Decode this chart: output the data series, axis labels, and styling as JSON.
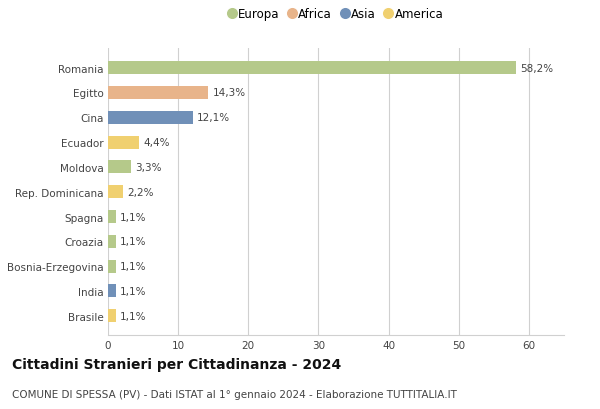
{
  "categories": [
    "Romania",
    "Egitto",
    "Cina",
    "Ecuador",
    "Moldova",
    "Rep. Dominicana",
    "Spagna",
    "Croazia",
    "Bosnia-Erzegovina",
    "India",
    "Brasile"
  ],
  "values": [
    58.2,
    14.3,
    12.1,
    4.4,
    3.3,
    2.2,
    1.1,
    1.1,
    1.1,
    1.1,
    1.1
  ],
  "labels": [
    "58,2%",
    "14,3%",
    "12,1%",
    "4,4%",
    "3,3%",
    "2,2%",
    "1,1%",
    "1,1%",
    "1,1%",
    "1,1%",
    "1,1%"
  ],
  "colors": [
    "#b5c98a",
    "#e8b48a",
    "#7090b8",
    "#f0d070",
    "#b5c98a",
    "#f0d070",
    "#b5c98a",
    "#b5c98a",
    "#b5c98a",
    "#7090b8",
    "#f0d070"
  ],
  "legend_labels": [
    "Europa",
    "Africa",
    "Asia",
    "America"
  ],
  "legend_colors": [
    "#b5c98a",
    "#e8b48a",
    "#7090b8",
    "#f0d070"
  ],
  "title": "Cittadini Stranieri per Cittadinanza - 2024",
  "subtitle": "COMUNE DI SPESSA (PV) - Dati ISTAT al 1° gennaio 2024 - Elaborazione TUTTITALIA.IT",
  "xlim": [
    0,
    65
  ],
  "xticks": [
    0,
    10,
    20,
    30,
    40,
    50,
    60
  ],
  "background_color": "#ffffff",
  "grid_color": "#d0d0d0",
  "bar_height": 0.52,
  "title_fontsize": 10,
  "subtitle_fontsize": 7.5,
  "label_fontsize": 7.5,
  "tick_fontsize": 7.5,
  "legend_fontsize": 8.5
}
